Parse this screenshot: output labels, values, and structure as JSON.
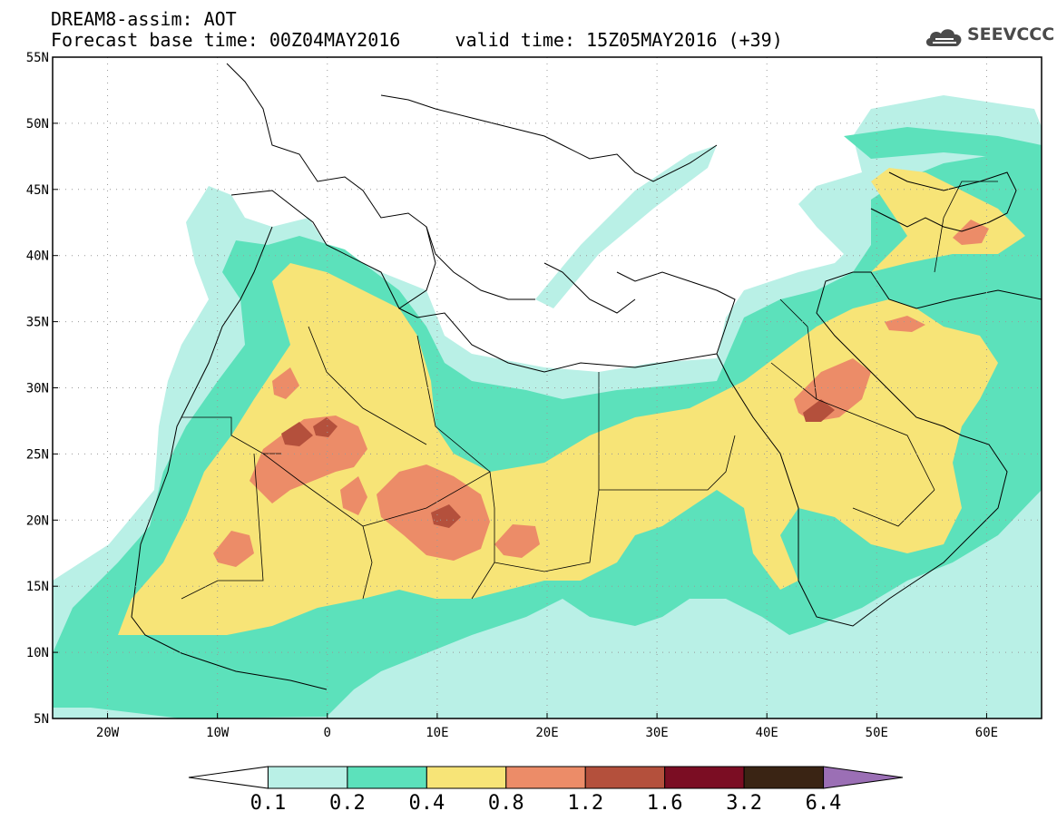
{
  "header": {
    "line1": "DREAM8-assim: AOT",
    "line2_base": "Forecast base time: 00Z04MAY2016",
    "line2_valid": "valid time: 15Z05MAY2016 (+39)"
  },
  "logo": {
    "text": "SEEVCCC",
    "icon": "cloud-icon"
  },
  "map": {
    "lon_range": [
      -25,
      65
    ],
    "lat_range": [
      5,
      55
    ],
    "lat_ticks": [
      {
        "value": 55,
        "label": "55N"
      },
      {
        "value": 50,
        "label": "50N"
      },
      {
        "value": 45,
        "label": "45N"
      },
      {
        "value": 40,
        "label": "40N"
      },
      {
        "value": 35,
        "label": "35N"
      },
      {
        "value": 30,
        "label": "30N"
      },
      {
        "value": 25,
        "label": "25N"
      },
      {
        "value": 20,
        "label": "20N"
      },
      {
        "value": 15,
        "label": "15N"
      },
      {
        "value": 10,
        "label": "10N"
      },
      {
        "value": 5,
        "label": "5N"
      }
    ],
    "lon_ticks": [
      {
        "value": -20,
        "label": "20W"
      },
      {
        "value": -10,
        "label": "10W"
      },
      {
        "value": 0,
        "label": "0"
      },
      {
        "value": 10,
        "label": "10E"
      },
      {
        "value": 20,
        "label": "20E"
      },
      {
        "value": 30,
        "label": "30E"
      },
      {
        "value": 40,
        "label": "40E"
      },
      {
        "value": 50,
        "label": "50E"
      },
      {
        "value": 60,
        "label": "60E"
      }
    ],
    "grid": "dotted"
  },
  "colorbar": {
    "labels": [
      "0.1",
      "0.2",
      "0.4",
      "0.8",
      "1.2",
      "1.6",
      "3.2",
      "6.4"
    ],
    "colors": [
      "#ffffff",
      "#b9f0e6",
      "#5ce1bb",
      "#f7e477",
      "#ec8c68",
      "#b4503c",
      "#7b0d23",
      "#3a2414",
      "#9b6fb5"
    ]
  }
}
